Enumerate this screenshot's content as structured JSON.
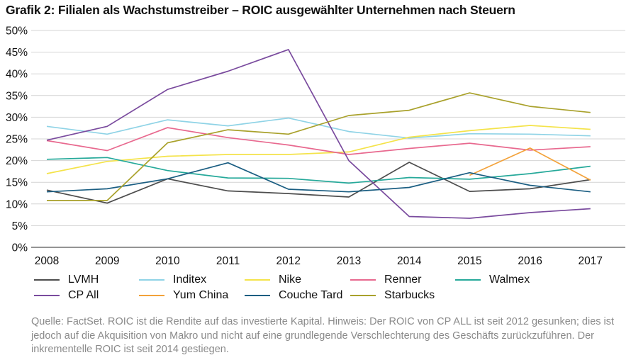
{
  "chart_data": {
    "type": "line",
    "title": "Grafik 2: Filialen als Wachstumstreiber – ROIC ausgewählter Unternehmen nach Steuern",
    "xlabel": "",
    "ylabel": "",
    "categories": [
      "2008",
      "2009",
      "2010",
      "2011",
      "2012",
      "2013",
      "2014",
      "2015",
      "2016",
      "2017"
    ],
    "ylim": [
      0,
      50
    ],
    "yticks": [
      0,
      5,
      10,
      15,
      20,
      25,
      30,
      35,
      40,
      45,
      50
    ],
    "ytick_labels": [
      "0%",
      "5%",
      "10%",
      "15%",
      "20%",
      "25%",
      "30%",
      "35%",
      "40%",
      "45%",
      "50%"
    ],
    "grid": true,
    "legend_position": "bottom",
    "series": [
      {
        "name": "LVMH",
        "color": "#4d4d4d",
        "values": [
          13.2,
          10.2,
          15.8,
          13.0,
          12.4,
          11.6,
          19.6,
          12.9,
          13.5,
          15.6
        ]
      },
      {
        "name": "Inditex",
        "color": "#8fd3e6",
        "values": [
          27.9,
          26.1,
          29.4,
          28.0,
          29.8,
          26.7,
          25.2,
          26.2,
          26.1,
          25.7
        ]
      },
      {
        "name": "Nike",
        "color": "#f4e34a",
        "values": [
          17.0,
          19.8,
          21.0,
          21.4,
          21.4,
          22.0,
          25.4,
          26.9,
          28.1,
          27.2
        ]
      },
      {
        "name": "Renner",
        "color": "#e8698f",
        "values": [
          24.6,
          22.3,
          27.6,
          25.3,
          23.6,
          21.4,
          22.8,
          24.0,
          22.4,
          23.2
        ]
      },
      {
        "name": "Walmex",
        "color": "#26a99a",
        "values": [
          20.3,
          20.7,
          17.7,
          16.0,
          15.9,
          14.8,
          16.1,
          15.7,
          17.0,
          18.7
        ]
      },
      {
        "name": "CP All",
        "color": "#7a4b9e",
        "values": [
          24.7,
          27.9,
          36.4,
          40.6,
          45.6,
          20.0,
          7.1,
          6.7,
          8.0,
          8.9
        ]
      },
      {
        "name": "Yum China",
        "color": "#f3a23a",
        "values": [
          null,
          null,
          null,
          null,
          null,
          null,
          null,
          16.6,
          22.9,
          15.5
        ]
      },
      {
        "name": "Couche Tard",
        "color": "#1b5e82",
        "values": [
          12.8,
          13.5,
          15.8,
          19.5,
          13.4,
          12.8,
          13.8,
          17.2,
          14.3,
          12.8
        ]
      },
      {
        "name": "Starbucks",
        "color": "#a9a12b",
        "values": [
          10.8,
          10.8,
          24.1,
          27.1,
          26.1,
          30.4,
          31.6,
          35.6,
          32.5,
          31.1
        ]
      }
    ]
  },
  "source_note": "Quelle: FactSet. ROIC ist die Rendite auf das investierte Kapital. Hinweis: Der ROIC von CP ALL ist seit 2012 gesunken; dies ist jedoch auf die Akquisition von Makro und nicht auf eine grundlegende Verschlechterung des Geschäfts zurückzuführen. Der inkrementelle ROIC ist seit 2014 gestiegen."
}
